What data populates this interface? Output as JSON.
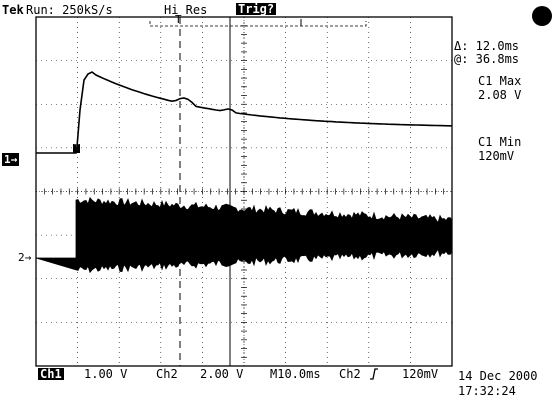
{
  "header": {
    "brand": "Tek",
    "run_status": "Run: 250kS/s",
    "acq_mode": "Hi Res",
    "trigger_status": "Trig?"
  },
  "markers": {
    "trigger_pos": "T",
    "ch1_marker": "1→",
    "ch2_marker": "2→",
    "trigger_level_marker": "T"
  },
  "cursor_readout": {
    "delta": "Δ: 12.0ms",
    "at": "@: 36.8ms"
  },
  "measurements": [
    {
      "label": "C1 Max",
      "value": "2.08 V"
    },
    {
      "label": "C1 Min",
      "value": "120mV"
    }
  ],
  "status_bar": {
    "ch1_label": "Ch1",
    "ch1_scale": "1.00 V",
    "ch2_label": "Ch2",
    "ch2_scale": "2.00 V",
    "timebase": "M10.0ms",
    "trigger_source": "Ch2",
    "trigger_slope_icon": "rising-edge-icon",
    "trigger_level": "120mV"
  },
  "datetime": {
    "date": "14 Dec 2000",
    "time": "17:32:24"
  },
  "colors": {
    "background": "#ffffff",
    "trace": "#000000",
    "graticule": "#000000"
  }
}
